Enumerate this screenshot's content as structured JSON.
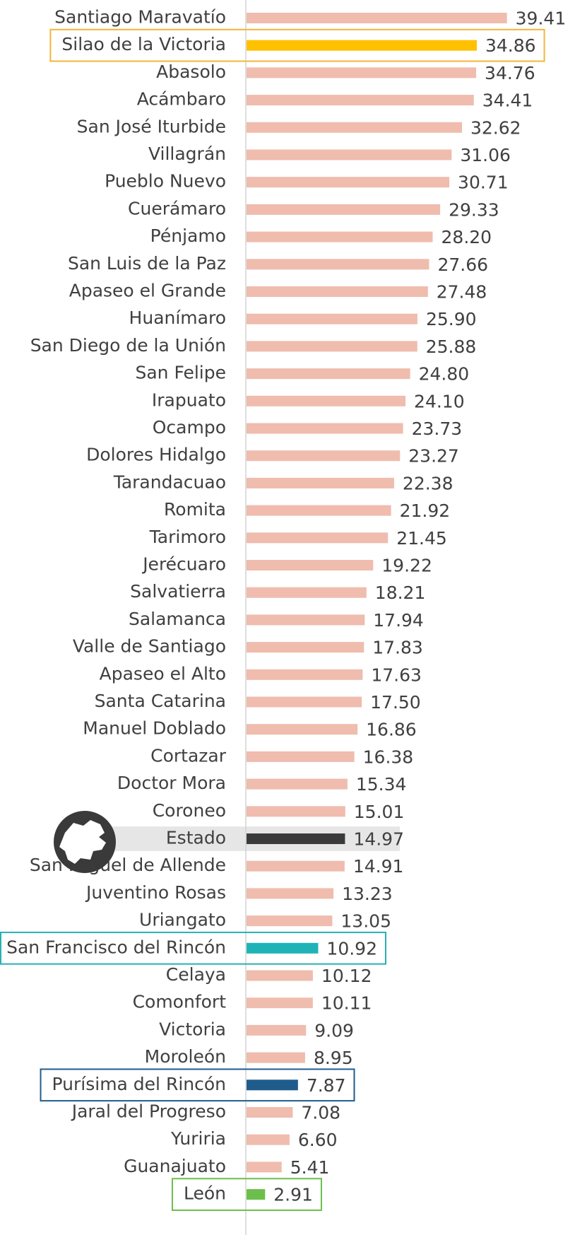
{
  "chart_data": {
    "type": "bar",
    "orientation": "horizontal",
    "categories": [
      "Santiago Maravatío",
      "Silao de la Victoria",
      "Abasolo",
      "Acámbaro",
      "San José Iturbide",
      "Villagrán",
      "Pueblo Nuevo",
      "Cuerámaro",
      "Pénjamo",
      "San Luis de la Paz",
      "Apaseo el Grande",
      "Huanímaro",
      "San Diego de la Unión",
      "San Felipe",
      "Irapuato",
      "Ocampo",
      "Dolores Hidalgo",
      "Tarandacuao",
      "Romita",
      "Tarimoro",
      "Jerécuaro",
      "Salvatierra",
      "Salamanca",
      "Valle de Santiago",
      "Apaseo el Alto",
      "Santa Catarina",
      "Manuel Doblado",
      "Cortazar",
      "Doctor Mora",
      "Coroneo",
      "Estado",
      "San Miguel de Allende",
      "Juventino Rosas",
      "Uriangato",
      "San Francisco del Rincón",
      "Celaya",
      "Comonfort",
      "Victoria",
      "Moroleón",
      "Purísima del Rincón",
      "Jaral del Progreso",
      "Yuriria",
      "Guanajuato",
      "León"
    ],
    "values": [
      39.41,
      34.86,
      34.76,
      34.41,
      32.62,
      31.06,
      30.71,
      29.33,
      28.2,
      27.66,
      27.48,
      25.9,
      25.88,
      24.8,
      24.1,
      23.73,
      23.27,
      22.38,
      21.92,
      21.45,
      19.22,
      18.21,
      17.94,
      17.83,
      17.63,
      17.5,
      16.86,
      16.38,
      15.34,
      15.01,
      14.97,
      14.91,
      13.23,
      13.05,
      10.92,
      10.12,
      10.11,
      9.09,
      8.95,
      7.87,
      7.08,
      6.6,
      5.41,
      2.91
    ],
    "value_labels": [
      "39.41",
      "34.86",
      "34.76",
      "34.41",
      "32.62",
      "31.06",
      "30.71",
      "29.33",
      "28.20",
      "27.66",
      "27.48",
      "25.90",
      "25.88",
      "24.80",
      "24.10",
      "23.73",
      "23.27",
      "22.38",
      "21.92",
      "21.45",
      "19.22",
      "18.21",
      "17.94",
      "17.83",
      "17.63",
      "17.50",
      "16.86",
      "16.38",
      "15.34",
      "15.01",
      "14.97",
      "14.91",
      "13.23",
      "13.05",
      "10.92",
      "10.12",
      "10.11",
      "9.09",
      "8.95",
      "7.87",
      "7.08",
      "6.60",
      "5.41",
      "2.91"
    ],
    "bar_colors": [
      "#efbcae",
      "#ffc000",
      "#efbcae",
      "#efbcae",
      "#efbcae",
      "#efbcae",
      "#efbcae",
      "#efbcae",
      "#efbcae",
      "#efbcae",
      "#efbcae",
      "#efbcae",
      "#efbcae",
      "#efbcae",
      "#efbcae",
      "#efbcae",
      "#efbcae",
      "#efbcae",
      "#efbcae",
      "#efbcae",
      "#efbcae",
      "#efbcae",
      "#efbcae",
      "#efbcae",
      "#efbcae",
      "#efbcae",
      "#efbcae",
      "#efbcae",
      "#efbcae",
      "#efbcae",
      "#3a3a3a",
      "#efbcae",
      "#efbcae",
      "#efbcae",
      "#1fb3b8",
      "#efbcae",
      "#efbcae",
      "#efbcae",
      "#efbcae",
      "#1f5c8c",
      "#efbcae",
      "#efbcae",
      "#efbcae",
      "#6cbf4c"
    ],
    "box_colors": [
      null,
      "#f4b63a",
      null,
      null,
      null,
      null,
      null,
      null,
      null,
      null,
      null,
      null,
      null,
      null,
      null,
      null,
      null,
      null,
      null,
      null,
      null,
      null,
      null,
      null,
      null,
      null,
      null,
      null,
      null,
      null,
      null,
      null,
      null,
      null,
      "#2ab0b5",
      null,
      null,
      null,
      null,
      "#1f5c8c",
      null,
      null,
      null,
      "#6cbf4c"
    ],
    "band_colors": [
      null,
      null,
      null,
      null,
      null,
      null,
      null,
      null,
      null,
      null,
      null,
      null,
      null,
      null,
      null,
      null,
      null,
      null,
      null,
      null,
      null,
      null,
      null,
      null,
      null,
      null,
      null,
      null,
      null,
      null,
      "#e6e6e6",
      null,
      null,
      null,
      null,
      null,
      null,
      null,
      null,
      null,
      null,
      null,
      null,
      null
    ]
  }
}
